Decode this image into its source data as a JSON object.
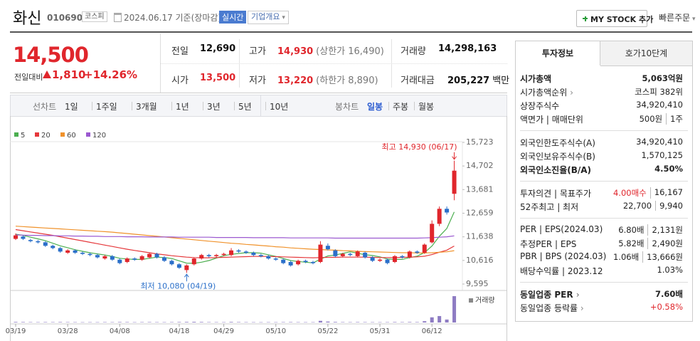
{
  "header": {
    "name": "화신",
    "code": "010690",
    "market": "코스피",
    "date": "2024.06.17 기준(장마감)",
    "realtime": "실시간",
    "company_info": "기업개요",
    "mystock": "MY STOCK 추가",
    "quick_order": "빠른주문"
  },
  "quote": {
    "price": "14,500",
    "change_label": "전일대비",
    "change": "1,810",
    "change_rate": "+14.26%",
    "items": [
      {
        "label": "전일",
        "value": "12,690"
      },
      {
        "label": "고가",
        "value": "14,930",
        "extra": "(상한가 16,490)"
      },
      {
        "label": "거래량",
        "value": "14,298,163"
      },
      {
        "label": "시가",
        "value": "13,500"
      },
      {
        "label": "저가",
        "value": "13,220",
        "extra": "(하한가 8,890)"
      },
      {
        "label": "거래대금",
        "value": "205,227",
        "unit": "백만"
      }
    ]
  },
  "chart_tabs": {
    "line": {
      "label": "선차트",
      "items": [
        "1일",
        "1주일",
        "3개월",
        "1년",
        "3년",
        "5년",
        "10년"
      ]
    },
    "candle": {
      "label": "봉차트",
      "items": [
        "일봉",
        "주봉",
        "월봉"
      ]
    }
  },
  "chart_data": {
    "type": "candlestick",
    "categories": [
      "03/19",
      null,
      null,
      null,
      null,
      null,
      null,
      "03/28",
      null,
      null,
      null,
      null,
      null,
      null,
      "04/08",
      null,
      null,
      null,
      null,
      null,
      null,
      null,
      "04/18",
      null,
      null,
      null,
      null,
      null,
      "04/29",
      null,
      null,
      null,
      null,
      null,
      null,
      "05/10",
      null,
      null,
      null,
      null,
      null,
      null,
      "05/22",
      null,
      null,
      null,
      null,
      null,
      null,
      "05/31",
      null,
      null,
      null,
      null,
      null,
      null,
      "06/12",
      null,
      null,
      null
    ],
    "open": [
      11550,
      11650,
      11500,
      11450,
      11400,
      11250,
      11150,
      10950,
      11050,
      10950,
      10900,
      10850,
      10700,
      10800,
      10650,
      10550,
      10700,
      10650,
      10750,
      10900,
      10750,
      10600,
      10450,
      10200,
      10450,
      10700,
      10850,
      10800,
      10850,
      10850,
      11050,
      11000,
      10950,
      10850,
      10800,
      10700,
      10650,
      10550,
      10450,
      10600,
      10550,
      10550,
      11250,
      11050,
      10800,
      10900,
      10800,
      10950,
      10750,
      10600,
      10650,
      10550,
      10800,
      10750,
      11000,
      10950,
      11400,
      12200,
      12850,
      13500
    ],
    "high": [
      11780,
      11700,
      11550,
      11500,
      11450,
      11300,
      11200,
      11100,
      11100,
      11000,
      10950,
      10900,
      10850,
      10850,
      10700,
      10750,
      10750,
      10850,
      10950,
      10950,
      10800,
      10650,
      10500,
      10450,
      10750,
      10900,
      10900,
      10900,
      10950,
      11150,
      11100,
      11050,
      11000,
      10900,
      10850,
      10750,
      10700,
      10600,
      10650,
      10650,
      10600,
      11450,
      11350,
      11100,
      10950,
      10950,
      11050,
      11000,
      10800,
      10700,
      10700,
      10850,
      10850,
      11050,
      11050,
      11350,
      12350,
      12950,
      12950,
      14930
    ],
    "low": [
      11500,
      11500,
      11400,
      11350,
      11200,
      11100,
      10950,
      10900,
      10900,
      10850,
      10800,
      10700,
      10650,
      10600,
      10450,
      10500,
      10600,
      10600,
      10700,
      10700,
      10550,
      10400,
      10250,
      10080,
      10400,
      10650,
      10750,
      10750,
      10800,
      10800,
      10950,
      10900,
      10800,
      10750,
      10650,
      10600,
      10450,
      10350,
      10400,
      10500,
      10450,
      10500,
      11050,
      10750,
      10750,
      10800,
      10750,
      10700,
      10550,
      10550,
      10450,
      10500,
      10700,
      10700,
      10900,
      10900,
      11350,
      12100,
      12600,
      13220
    ],
    "close": [
      11700,
      11550,
      11450,
      11400,
      11250,
      11150,
      11000,
      11050,
      10950,
      10900,
      10850,
      10750,
      10800,
      10650,
      10500,
      10700,
      10650,
      10800,
      10900,
      10750,
      10600,
      10450,
      10300,
      10400,
      10700,
      10850,
      10800,
      10850,
      10900,
      11050,
      11000,
      10950,
      10850,
      10800,
      10700,
      10650,
      10500,
      10400,
      10600,
      10550,
      10500,
      11300,
      11100,
      10800,
      10900,
      10850,
      11000,
      10750,
      10600,
      10650,
      10500,
      10800,
      10750,
      11000,
      10950,
      11300,
      12200,
      12850,
      12690,
      14500
    ],
    "up_color": "#e0262c",
    "down_color": "#2a6fc9",
    "series": [
      {
        "name": "5",
        "color": "#4caf50",
        "values": [
          11750,
          11700,
          11620,
          11550,
          11470,
          11360,
          11250,
          11170,
          11080,
          11010,
          10950,
          10900,
          10850,
          10790,
          10710,
          10680,
          10660,
          10660,
          10710,
          10760,
          10740,
          10700,
          10600,
          10500,
          10490,
          10540,
          10610,
          10720,
          10820,
          10880,
          10920,
          10950,
          10950,
          10930,
          10860,
          10790,
          10700,
          10610,
          10570,
          10540,
          10510,
          10670,
          10810,
          10850,
          10920,
          10990,
          10930,
          10860,
          10830,
          10770,
          10680,
          10660,
          10660,
          10740,
          10800,
          10960,
          11240,
          11660,
          12000,
          12710
        ]
      },
      {
        "name": "20",
        "color": "#e5383b",
        "values": [
          11950,
          11900,
          11850,
          11800,
          11750,
          11700,
          11640,
          11580,
          11520,
          11460,
          11400,
          11340,
          11280,
          11220,
          11160,
          11100,
          11050,
          11000,
          10950,
          10900,
          10860,
          10820,
          10790,
          10760,
          10740,
          10730,
          10730,
          10740,
          10750,
          10760,
          10770,
          10780,
          10790,
          10790,
          10790,
          10780,
          10770,
          10760,
          10750,
          10740,
          10730,
          10740,
          10750,
          10750,
          10760,
          10760,
          10760,
          10760,
          10750,
          10740,
          10740,
          10740,
          10750,
          10760,
          10770,
          10800,
          10870,
          10970,
          11060,
          11240
        ]
      },
      {
        "name": "60",
        "color": "#f0922b",
        "values": [
          12100,
          12080,
          12060,
          12040,
          12020,
          12000,
          11980,
          11960,
          11940,
          11920,
          11900,
          11880,
          11860,
          11840,
          11810,
          11780,
          11750,
          11720,
          11690,
          11660,
          11630,
          11600,
          11570,
          11540,
          11510,
          11480,
          11450,
          11420,
          11390,
          11360,
          11340,
          11310,
          11290,
          11260,
          11240,
          11210,
          11190,
          11160,
          11140,
          11120,
          11100,
          11090,
          11070,
          11060,
          11040,
          11030,
          11010,
          11000,
          10990,
          10980,
          10970,
          10960,
          10950,
          10950,
          10940,
          10940,
          10950,
          10970,
          10990,
          11040
        ]
      },
      {
        "name": "120",
        "color": "#9b59d0",
        "values": [
          11720,
          11710,
          11700,
          11700,
          11690,
          11690,
          11680,
          11680,
          11670,
          11670,
          11660,
          11660,
          11650,
          11650,
          11650,
          11640,
          11640,
          11640,
          11630,
          11630,
          11630,
          11630,
          11620,
          11620,
          11620,
          11620,
          11620,
          11610,
          11610,
          11610,
          11610,
          11610,
          11600,
          11600,
          11600,
          11600,
          11600,
          11590,
          11590,
          11590,
          11590,
          11590,
          11590,
          11580,
          11580,
          11580,
          11580,
          11580,
          11580,
          11580,
          11580,
          11580,
          11580,
          11580,
          11580,
          11590,
          11600,
          11620,
          11640,
          11680
        ]
      }
    ],
    "volume": {
      "label": "거래량",
      "color": "#8e7cc3",
      "values": [
        300000,
        250000,
        200000,
        180000,
        220000,
        200000,
        250000,
        200000,
        180000,
        150000,
        170000,
        160000,
        200000,
        180000,
        250000,
        220000,
        160000,
        200000,
        220000,
        180000,
        170000,
        200000,
        250000,
        300000,
        350000,
        280000,
        200000,
        180000,
        170000,
        300000,
        220000,
        180000,
        160000,
        150000,
        170000,
        160000,
        200000,
        220000,
        180000,
        160000,
        170000,
        900000,
        500000,
        300000,
        200000,
        180000,
        220000,
        200000,
        170000,
        160000,
        180000,
        250000,
        200000,
        260000,
        220000,
        700000,
        2800000,
        3500000,
        1600000,
        14298163
      ]
    },
    "ylim": [
      9595,
      15723
    ],
    "yticks": [
      {
        "value": 9595,
        "label": "9,595"
      },
      {
        "value": 10616,
        "label": "10,616"
      },
      {
        "value": 11638,
        "label": "11,638"
      },
      {
        "value": 12659,
        "label": "12,659"
      },
      {
        "value": 13681,
        "label": "13,681"
      },
      {
        "value": 14702,
        "label": "14,702"
      },
      {
        "value": 15723,
        "label": "15,723"
      }
    ],
    "annotations": {
      "high": "최고 14,930 (06/17)",
      "low": "최저 10,080 (04/19)"
    }
  },
  "invest_info": {
    "tabs": [
      "투자정보",
      "호가10단계"
    ],
    "sections": [
      [
        {
          "label": "시가총액",
          "values": [
            "5,063억원"
          ]
        },
        {
          "label": "시가총액순위",
          "values": [
            "코스피 382위"
          ]
        },
        {
          "label": "상장주식수",
          "values": [
            "34,920,410"
          ]
        },
        {
          "label": "액면가 | 매매단위",
          "values": [
            "500원",
            "1주"
          ]
        }
      ],
      [
        {
          "label": "외국인한도주식수(A)",
          "values": [
            "34,920,410"
          ]
        },
        {
          "label": "외국인보유주식수(B)",
          "values": [
            "1,570,125"
          ]
        },
        {
          "label": "외국인소진율(B/A)",
          "values": [
            "4.50%"
          ]
        }
      ],
      [
        {
          "label": "투자의견 | 목표주가",
          "values": [
            "4.00매수",
            "16,167"
          ]
        },
        {
          "label": "52주최고 | 최저",
          "values": [
            "22,700",
            "9,940"
          ]
        }
      ],
      [
        {
          "label": "PER | EPS(2024.03)",
          "values": [
            "6.80배",
            "2,131원"
          ]
        },
        {
          "label": "추정PER | EPS",
          "values": [
            "5.82배",
            "2,490원"
          ]
        },
        {
          "label": "PBR | BPS (2024.03)",
          "values": [
            "1.06배",
            "13,666원"
          ]
        },
        {
          "label": "배당수익률 | 2023.12",
          "values": [
            "1.03%"
          ]
        }
      ],
      [
        {
          "label": "동일업종 PER",
          "values": [
            "7.60배"
          ]
        },
        {
          "label": "동일업종 등락률",
          "values": [
            "+0.58%"
          ]
        }
      ]
    ]
  }
}
